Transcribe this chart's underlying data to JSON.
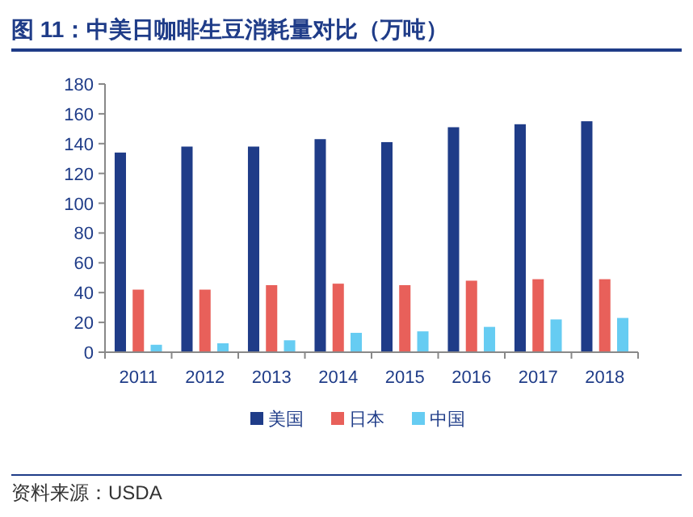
{
  "chart_data": {
    "type": "bar",
    "title": "图 11：中美日咖啡生豆消耗量对比（万吨）",
    "categories": [
      "2011",
      "2012",
      "2013",
      "2014",
      "2015",
      "2016",
      "2017",
      "2018"
    ],
    "series": [
      {
        "name": "美国",
        "color": "#1f3c88",
        "values": [
          134,
          138,
          138,
          143,
          141,
          151,
          153,
          155
        ]
      },
      {
        "name": "日本",
        "color": "#e8605a",
        "values": [
          42,
          42,
          45,
          46,
          45,
          48,
          49,
          49
        ]
      },
      {
        "name": "中国",
        "color": "#66ccf2",
        "values": [
          5,
          6,
          8,
          13,
          14,
          17,
          22,
          23
        ]
      }
    ],
    "ylim": [
      0,
      180
    ],
    "yticks": [
      0,
      20,
      40,
      60,
      80,
      100,
      120,
      140,
      160,
      180
    ],
    "grid": false,
    "legend": "bottom",
    "annotations": [
      "资料来源：USDA"
    ]
  }
}
